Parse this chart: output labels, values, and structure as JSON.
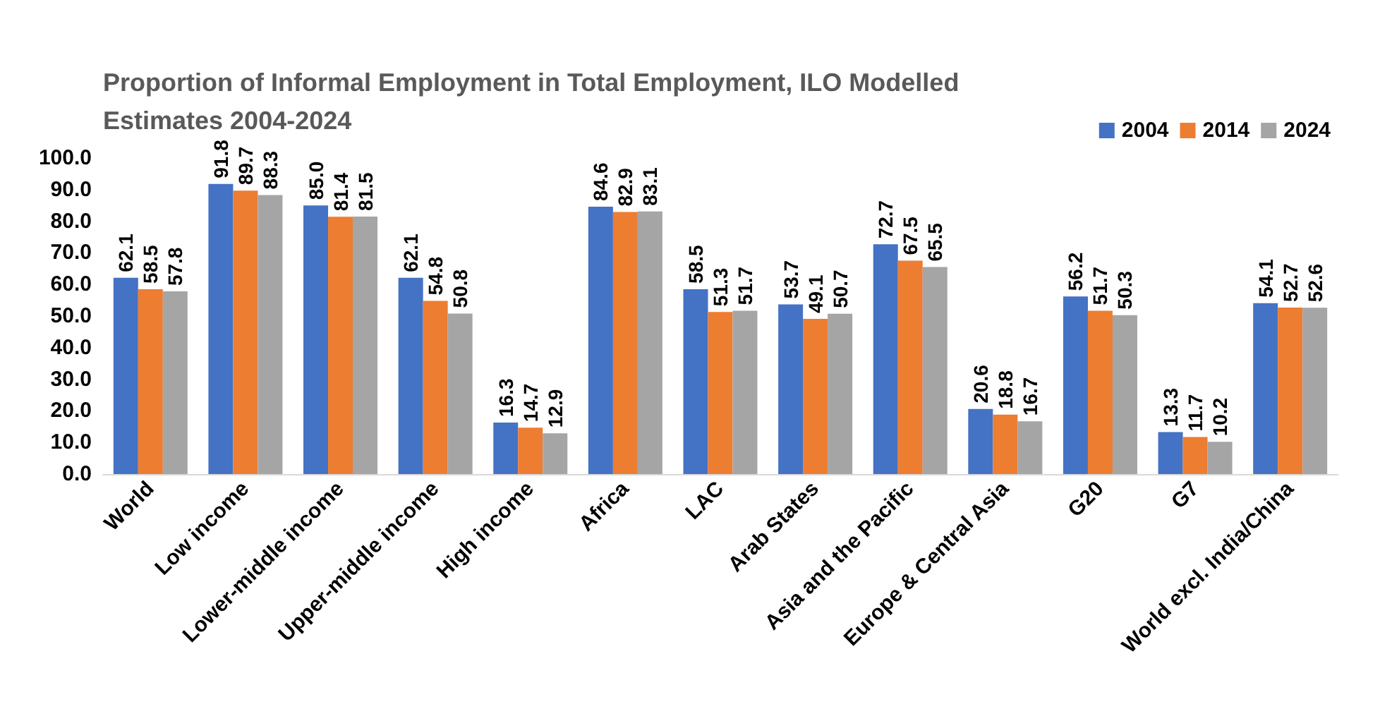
{
  "chart_data": {
    "type": "bar",
    "title": "Proportion of Informal Employment in Total Employment, ILO Modelled\nEstimates 2004-2024",
    "categories": [
      "World",
      "Low income",
      "Lower-middle income",
      "Upper-middle income",
      "High income",
      "Africa",
      "LAC",
      "Arab States",
      "Asia and the Pacific",
      "Europe & Central Asia",
      "G20",
      "G7",
      "World excl. India/China"
    ],
    "series": [
      {
        "name": "2004",
        "color": "#4472c4",
        "values": [
          62.1,
          91.8,
          85.0,
          62.1,
          16.3,
          84.6,
          58.5,
          53.7,
          72.7,
          20.6,
          56.2,
          13.3,
          54.1
        ],
        "value_labels": [
          "62.1",
          "91.8",
          "85.0",
          "62.1",
          "16.3",
          "84.6",
          "58.5",
          "53.7",
          "72.7",
          "20.6",
          "56.2",
          "13.3",
          "54.1"
        ]
      },
      {
        "name": "2014",
        "color": "#ed7d31",
        "values": [
          58.5,
          89.7,
          81.4,
          54.8,
          14.7,
          82.9,
          51.3,
          49.1,
          67.5,
          18.8,
          51.7,
          11.7,
          52.7
        ],
        "value_labels": [
          "58.5",
          "89.7",
          "81.4",
          "54.8",
          "14.7",
          "82.9",
          "51.3",
          "49.1",
          "67.5",
          "18.8",
          "51.7",
          "11.7",
          "52.7"
        ]
      },
      {
        "name": "2024",
        "color": "#a5a5a5",
        "values": [
          57.8,
          88.3,
          81.5,
          50.8,
          12.9,
          83.1,
          51.7,
          50.7,
          65.5,
          16.7,
          50.3,
          10.2,
          52.6
        ],
        "value_labels": [
          "57.8",
          "88.3",
          "81.5",
          "50.8",
          "12.9",
          "83.1",
          "51.7",
          "50.7",
          "65.5",
          "16.7",
          "50.3",
          "10.2",
          "52.6"
        ]
      }
    ],
    "ylim": [
      0,
      100
    ],
    "yticks": [
      {
        "value": 0,
        "label": "0.0"
      },
      {
        "value": 10,
        "label": "10.0"
      },
      {
        "value": 20,
        "label": "20.0"
      },
      {
        "value": 30,
        "label": "30.0"
      },
      {
        "value": 40,
        "label": "40.0"
      },
      {
        "value": 50,
        "label": "50.0"
      },
      {
        "value": 60,
        "label": "60.0"
      },
      {
        "value": 70,
        "label": "70.0"
      },
      {
        "value": 80,
        "label": "80.0"
      },
      {
        "value": 90,
        "label": "90.0"
      },
      {
        "value": 100,
        "label": "100.0"
      }
    ],
    "grid": false,
    "legend": "top right"
  }
}
